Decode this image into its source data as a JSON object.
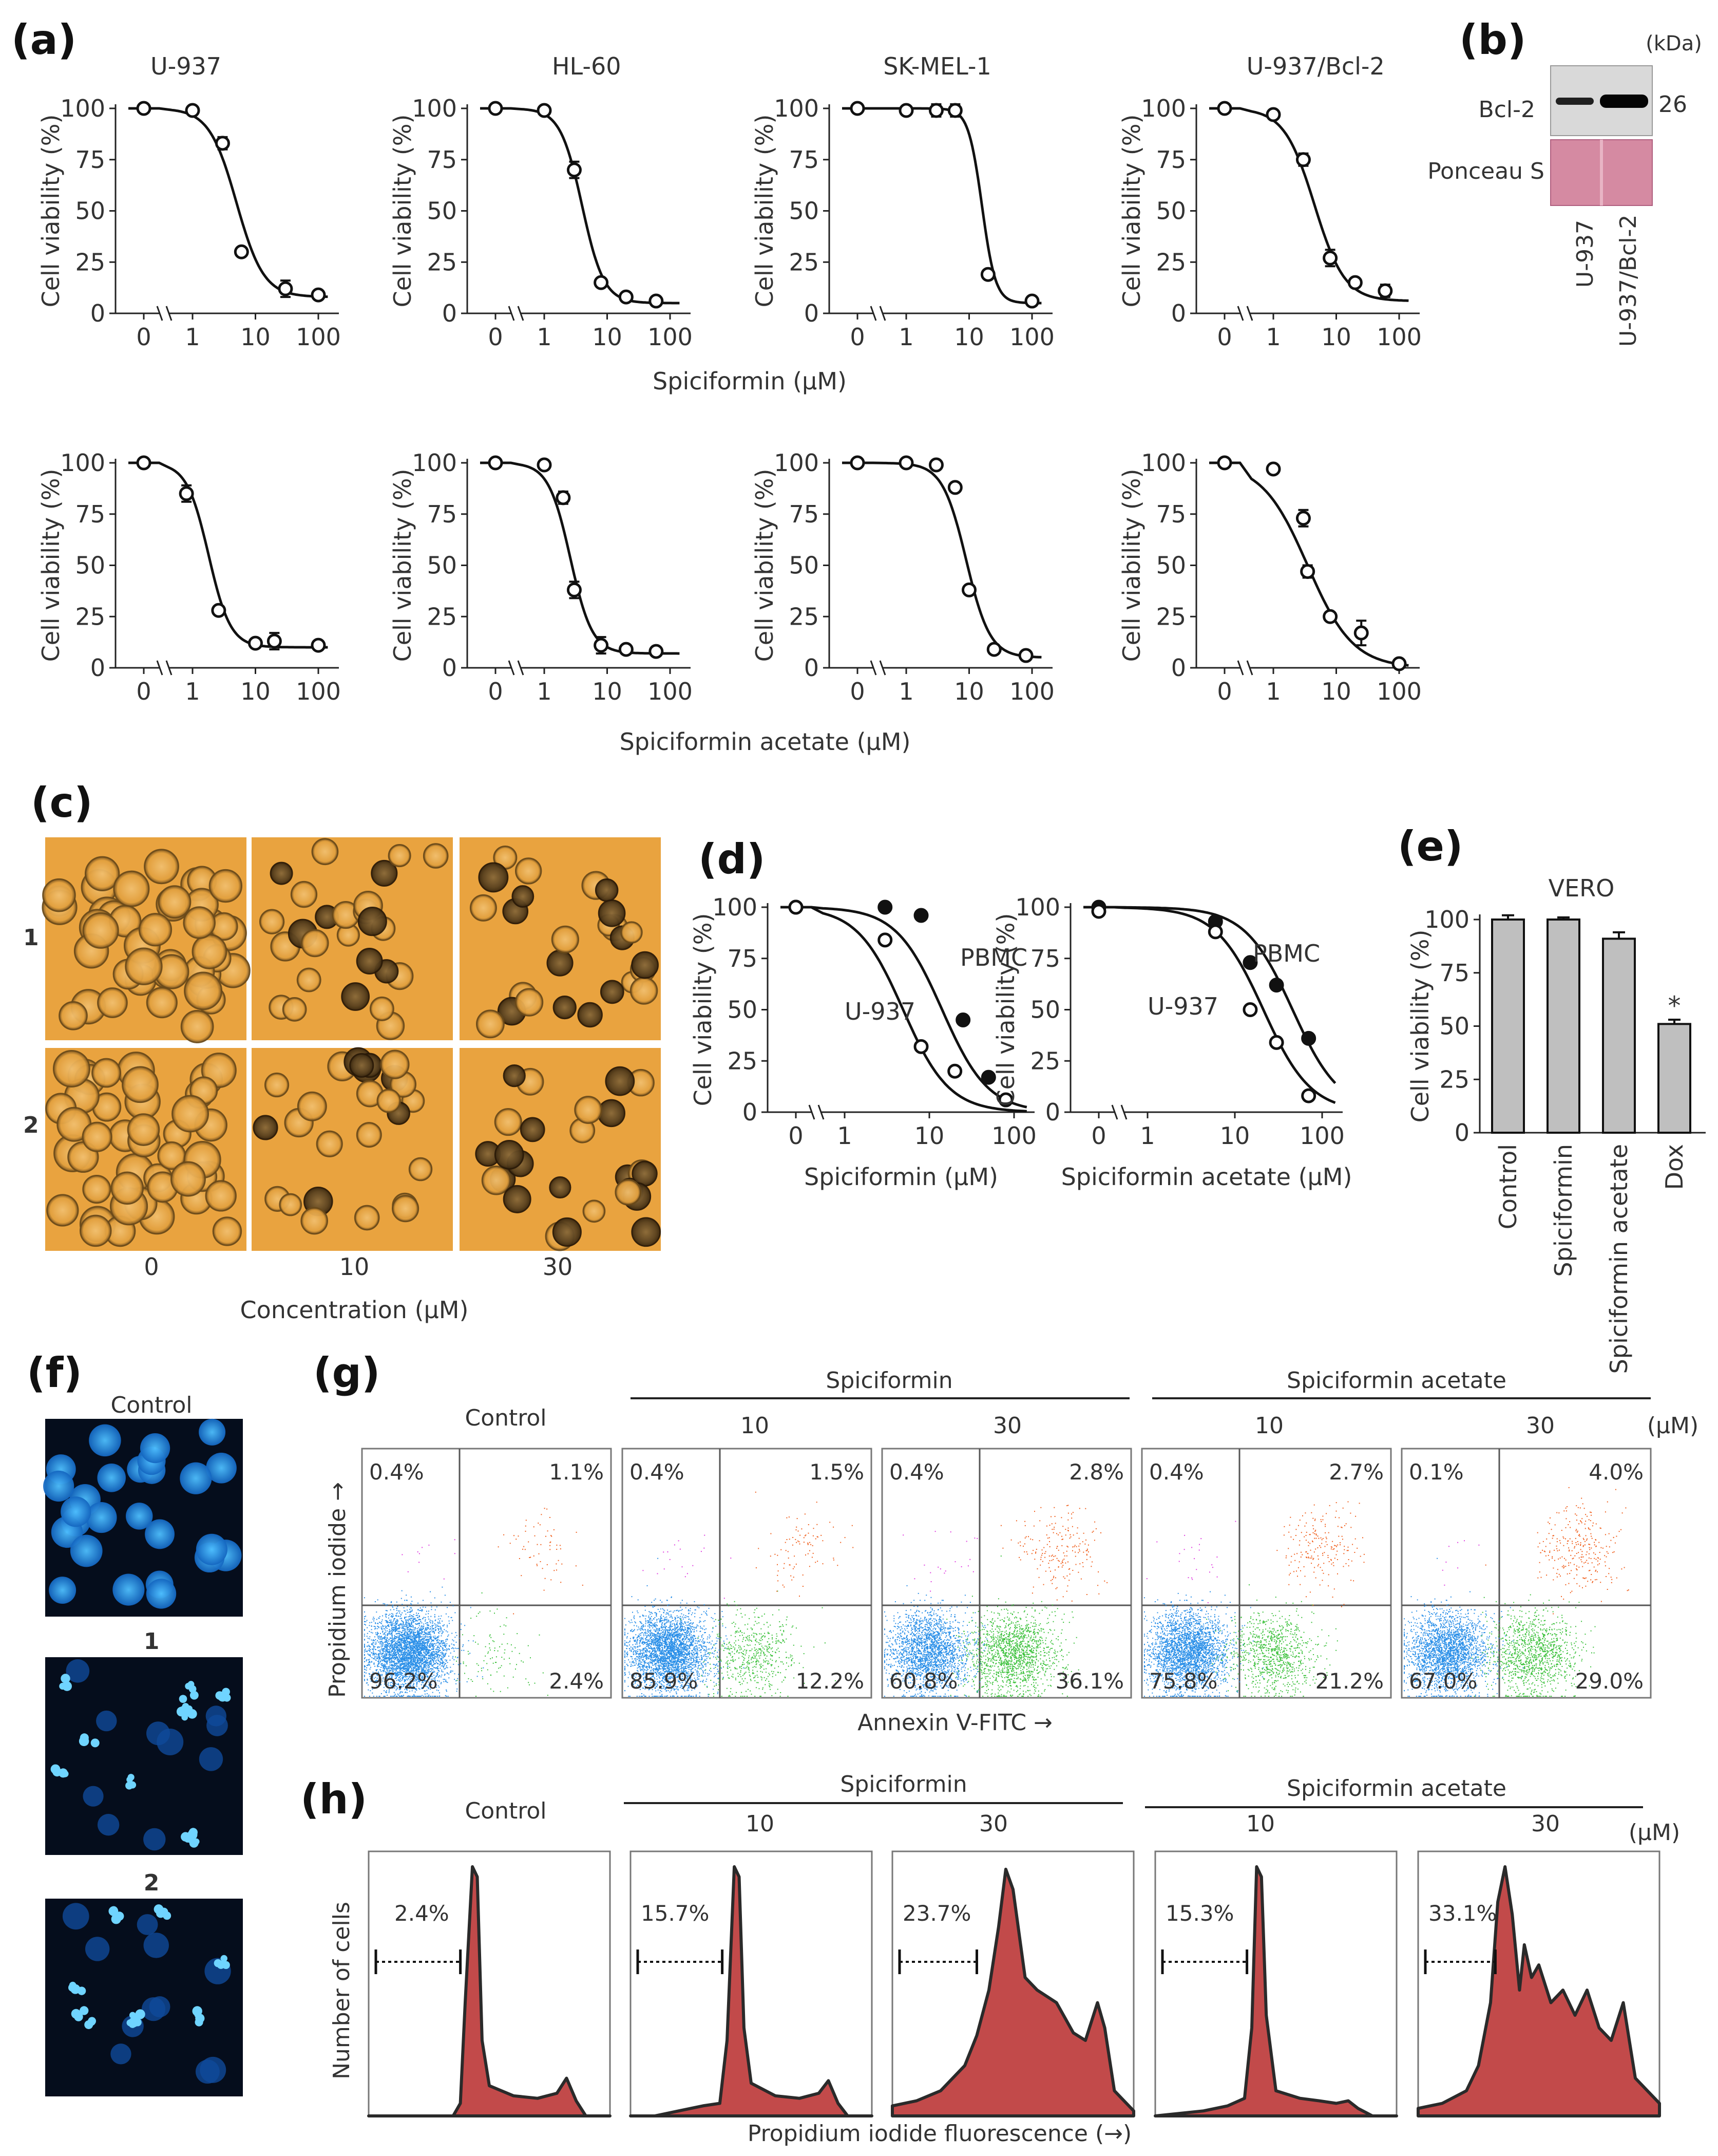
{
  "panel_letters": {
    "a": "(a)",
    "b": "(b)",
    "c": "(c)",
    "d": "(d)",
    "e": "(e)",
    "f": "(f)",
    "g": "(g)",
    "h": "(h)"
  },
  "colors": {
    "pbmc": "#111111",
    "u937": "#ffffff",
    "bar": "#bfbfbf",
    "dot_live": "#2a8fe8",
    "dot_early": "#3cc13c",
    "dot_late": "#f0601e",
    "dot_necro": "#e040e0",
    "hist": "#c24a4a",
    "pink": "#d58aa2",
    "fluor_bg": "#050d1c",
    "fluor_nuc": "#2a9bf0",
    "micro_bg": "#e9a33f"
  },
  "panel_a": {
    "row1_xlabel": "Spiciformin (μM)",
    "row2_xlabel": "Spiciformin acetate (μM)",
    "chart_data": [
      {
        "type": "scatter",
        "title": "U-937",
        "ylabel": "Cell viability (%)",
        "xlabel": "Spiciformin (μM)",
        "x_ticks": [
          "0",
          "1",
          "10",
          "100"
        ],
        "y_ticks": [
          "0",
          "25",
          "50",
          "75",
          "100"
        ],
        "ylim": [
          0,
          100
        ],
        "x": [
          0,
          1,
          3,
          6,
          30,
          100
        ],
        "y": [
          100,
          99,
          83,
          30,
          12,
          9
        ],
        "err": [
          0,
          0,
          3,
          0,
          4,
          0
        ],
        "fit": {
          "ic50": 5,
          "bottom": 8,
          "hill": 2
        }
      },
      {
        "type": "scatter",
        "title": "HL-60",
        "ylabel": "Cell viability (%)",
        "xlabel": "Spiciformin (μM)",
        "x_ticks": [
          "0",
          "1",
          "10",
          "100"
        ],
        "y_ticks": [
          "0",
          "25",
          "50",
          "75",
          "100"
        ],
        "ylim": [
          0,
          100
        ],
        "x": [
          0,
          1,
          3,
          8,
          20,
          60
        ],
        "y": [
          100,
          99,
          70,
          15,
          8,
          6
        ],
        "err": [
          0,
          0,
          4,
          0,
          0,
          0
        ],
        "fit": {
          "ic50": 4,
          "bottom": 5,
          "hill": 2.5
        }
      },
      {
        "type": "scatter",
        "title": "SK-MEL-1",
        "ylabel": "Cell viability (%)",
        "xlabel": "Spiciformin (μM)",
        "x_ticks": [
          "0",
          "1",
          "10",
          "100"
        ],
        "y_ticks": [
          "0",
          "25",
          "50",
          "75",
          "100"
        ],
        "ylim": [
          0,
          100
        ],
        "x": [
          0,
          1,
          3,
          6,
          20,
          100
        ],
        "y": [
          100,
          99,
          99,
          99,
          19,
          6
        ],
        "err": [
          0,
          0,
          3,
          3,
          0,
          0
        ],
        "fit": {
          "ic50": 16,
          "bottom": 5,
          "hill": 4
        }
      },
      {
        "type": "scatter",
        "title": "U-937/Bcl-2",
        "ylabel": "Cell viability (%)",
        "xlabel": "Spiciformin (μM)",
        "x_ticks": [
          "0",
          "1",
          "10",
          "100"
        ],
        "y_ticks": [
          "0",
          "25",
          "50",
          "75",
          "100"
        ],
        "ylim": [
          0,
          100
        ],
        "x": [
          0,
          1,
          3,
          8,
          20,
          60
        ],
        "y": [
          100,
          97,
          75,
          27,
          15,
          11
        ],
        "err": [
          0,
          0,
          3,
          4,
          2,
          3
        ],
        "fit": {
          "ic50": 4.5,
          "bottom": 6,
          "hill": 1.8
        }
      },
      {
        "type": "scatter",
        "title": "",
        "ylabel": "Cell viability (%)",
        "xlabel": "Spiciformin acetate (μM)",
        "x_ticks": [
          "0",
          "1",
          "10",
          "100"
        ],
        "y_ticks": [
          "0",
          "25",
          "50",
          "75",
          "100"
        ],
        "ylim": [
          0,
          100
        ],
        "x": [
          0,
          0.8,
          2.6,
          10,
          20,
          100
        ],
        "y": [
          100,
          85,
          28,
          12,
          13,
          11
        ],
        "err": [
          0,
          4,
          0,
          0,
          4,
          0
        ],
        "fit": {
          "ic50": 1.8,
          "bottom": 10,
          "hill": 2.5
        }
      },
      {
        "type": "scatter",
        "title": "",
        "ylabel": "Cell viability (%)",
        "xlabel": "Spiciformin acetate (μM)",
        "x_ticks": [
          "0",
          "1",
          "10",
          "100"
        ],
        "y_ticks": [
          "0",
          "25",
          "50",
          "75",
          "100"
        ],
        "ylim": [
          0,
          100
        ],
        "x": [
          0,
          1,
          2,
          3,
          8,
          20,
          60
        ],
        "y": [
          100,
          99,
          83,
          38,
          11,
          9,
          8
        ],
        "err": [
          0,
          0,
          3,
          4,
          4,
          0,
          0
        ],
        "fit": {
          "ic50": 2.6,
          "bottom": 7,
          "hill": 2.5
        }
      },
      {
        "type": "scatter",
        "title": "",
        "ylabel": "Cell viability (%)",
        "xlabel": "Spiciformin acetate (μM)",
        "x_ticks": [
          "0",
          "1",
          "10",
          "100"
        ],
        "y_ticks": [
          "0",
          "25",
          "50",
          "75",
          "100"
        ],
        "ylim": [
          0,
          100
        ],
        "x": [
          0,
          1,
          3,
          6,
          10,
          25,
          80
        ],
        "y": [
          100,
          100,
          99,
          88,
          38,
          9,
          6
        ],
        "err": [
          0,
          0,
          0,
          0,
          2,
          0,
          0
        ],
        "fit": {
          "ic50": 9,
          "bottom": 5,
          "hill": 2.3
        }
      },
      {
        "type": "scatter",
        "title": "",
        "ylabel": "Cell viability (%)",
        "xlabel": "Spiciformin acetate (μM)",
        "x_ticks": [
          "0",
          "1",
          "10",
          "100"
        ],
        "y_ticks": [
          "0",
          "25",
          "50",
          "75",
          "100"
        ],
        "ylim": [
          0,
          100
        ],
        "x": [
          0,
          1,
          3,
          3.5,
          8,
          25,
          100
        ],
        "y": [
          100,
          97,
          73,
          47,
          25,
          17,
          2
        ],
        "err": [
          0,
          0,
          4,
          3,
          0,
          6,
          0
        ],
        "fit": {
          "ic50": 3.5,
          "bottom": 0,
          "hill": 1.2
        }
      }
    ]
  },
  "panel_b": {
    "unit": "(kDa)",
    "bcl2_label": "Bcl-2",
    "mw": "26",
    "ponceau_label": "Ponceau S",
    "lanes": [
      "U-937",
      "U-937/Bcl-2"
    ]
  },
  "panel_c": {
    "row_labels": [
      "1",
      "2"
    ],
    "col_labels": [
      "0",
      "10",
      "30"
    ],
    "xlabel": "Concentration (μM)"
  },
  "panel_d": {
    "chart_data": [
      {
        "type": "scatter",
        "ylabel": "Cell viability (%)",
        "xlabel": "Spiciformin (μM)",
        "x_ticks": [
          "0",
          "1",
          "10",
          "100"
        ],
        "y_ticks": [
          "0",
          "25",
          "50",
          "75",
          "100"
        ],
        "ylim": [
          0,
          100
        ],
        "series": [
          {
            "name": "PBMC",
            "x": [
              0,
              3,
              8,
              25,
              50
            ],
            "y": [
              100,
              100,
              96,
              45,
              17
            ]
          },
          {
            "name": "U-937",
            "x": [
              0,
              3,
              8,
              20,
              80
            ],
            "y": [
              100,
              84,
              32,
              20,
              6
            ]
          }
        ]
      },
      {
        "type": "scatter",
        "ylabel": "Cell viability (%)",
        "xlabel": "Spiciformin acetate (μM)",
        "x_ticks": [
          "0",
          "1",
          "10",
          "100"
        ],
        "y_ticks": [
          "0",
          "25",
          "50",
          "75",
          "100"
        ],
        "ylim": [
          0,
          100
        ],
        "series": [
          {
            "name": "PBMC",
            "x": [
              0,
              6,
              15,
              30,
              70
            ],
            "y": [
              100,
              93,
              73,
              62,
              36
            ]
          },
          {
            "name": "U-937",
            "x": [
              0,
              6,
              15,
              30,
              70
            ],
            "y": [
              98,
              88,
              50,
              34,
              8
            ]
          }
        ]
      }
    ]
  },
  "panel_e": {
    "chart_data": {
      "type": "bar",
      "title": "VERO",
      "ylabel": "Cell viability (%)",
      "categories": [
        "Control",
        "Spiciformin",
        "Spiciformin acetate",
        "Dox"
      ],
      "values": [
        100,
        100,
        91,
        51
      ],
      "err": [
        2,
        1,
        3,
        2
      ],
      "annotations": [
        "",
        "",
        "",
        "*"
      ],
      "ylim": [
        0,
        100
      ],
      "y_ticks": [
        "0",
        "25",
        "50",
        "75",
        "100"
      ]
    }
  },
  "panel_f": {
    "labels": [
      "Control",
      "1",
      "2"
    ]
  },
  "panel_g": {
    "group1": "Spiciformin",
    "group2": "Spiciformin acetate",
    "unit": "(μM)",
    "ylabel": "Propidium iodide →",
    "xlabel": "Annexin V-FITC →",
    "plots": [
      {
        "label": "Control",
        "ul": "0.4%",
        "ur": "1.1%",
        "ll": "96.2%",
        "lr": "2.4%"
      },
      {
        "label": "10",
        "ul": "0.4%",
        "ur": "1.5%",
        "ll": "85.9%",
        "lr": "12.2%"
      },
      {
        "label": "30",
        "ul": "0.4%",
        "ur": "2.8%",
        "ll": "60.8%",
        "lr": "36.1%"
      },
      {
        "label": "10",
        "ul": "0.4%",
        "ur": "2.7%",
        "ll": "75.8%",
        "lr": "21.2%"
      },
      {
        "label": "30",
        "ul": "0.1%",
        "ur": "4.0%",
        "ll": "67.0%",
        "lr": "29.0%"
      }
    ]
  },
  "panel_h": {
    "group1": "Spiciformin",
    "group2": "Spiciformin acetate",
    "unit": "(μM)",
    "ylabel": "Number of cells",
    "xlabel": "Propidium iodide fluorescence (→)",
    "plots": [
      {
        "label": "Control",
        "subg1": "2.4%"
      },
      {
        "label": "10",
        "subg1": "15.7%"
      },
      {
        "label": "30",
        "subg1": "23.7%"
      },
      {
        "label": "10",
        "subg1": "15.3%"
      },
      {
        "label": "30",
        "subg1": "33.1%"
      }
    ]
  }
}
